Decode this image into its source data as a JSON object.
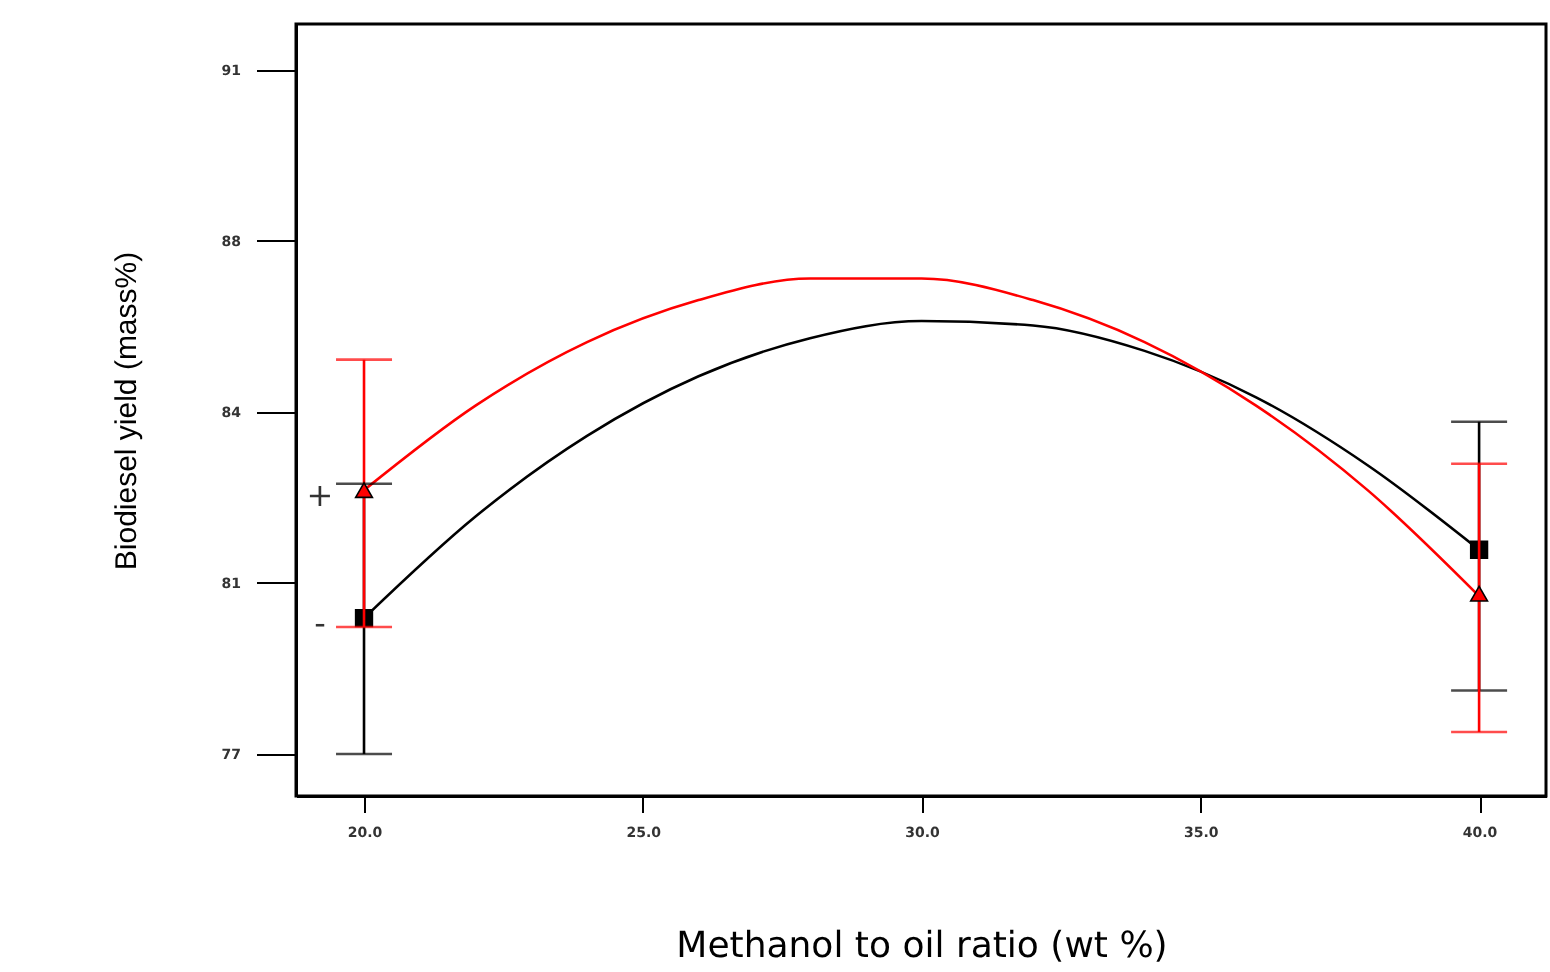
{
  "chart_data": {
    "type": "line",
    "xlabel": "Methanol to oil ratio (wt %)",
    "ylabel": "Biodiesel yield (mass%)",
    "xlim": [
      18.78,
      41.2
    ],
    "xticks": [
      {
        "value": 20,
        "label": "20.0"
      },
      {
        "value": 25,
        "label": "25.0"
      },
      {
        "value": 30,
        "label": "30.0"
      },
      {
        "value": 35,
        "label": "35.0"
      },
      {
        "value": 40,
        "label": "40.0"
      }
    ],
    "ylim": [
      76.14,
      91.94
    ],
    "yticks": [
      77,
      {
        "value": 80.5,
        "label": "81"
      },
      84,
      {
        "value": 87.5,
        "label": "88"
      },
      91
    ],
    "grid": false,
    "series": [
      {
        "color": "#000000",
        "x": [
          20,
          22,
          24,
          26,
          28,
          30,
          32,
          34,
          36,
          38,
          40
        ],
        "values": [
          79.78,
          81.86,
          83.51,
          84.73,
          85.51,
          85.86,
          85.77,
          85.25,
          84.3,
          82.91,
          81.18
        ]
      },
      {
        "color": "#ff0000",
        "x": [
          20,
          22,
          24,
          26,
          28,
          30,
          32,
          34,
          36,
          38,
          40
        ],
        "values": [
          82.4,
          84.13,
          85.43,
          86.29,
          86.73,
          86.73,
          86.29,
          85.43,
          84.13,
          82.4,
          80.23
        ]
      },
      {
        "type": "scatter",
        "color": "#000000",
        "marker": "square",
        "x": [
          20,
          40
        ],
        "values": [
          79.78,
          81.18
        ],
        "errors": [
          [
            77.0,
            82.53
          ],
          [
            78.3,
            83.8
          ]
        ]
      },
      {
        "type": "scatter",
        "color": "#ff0000",
        "marker": "triangle",
        "x": [
          20,
          40
        ],
        "values": [
          82.4,
          80.28
        ],
        "errors": [
          [
            79.6,
            85.07
          ],
          [
            77.45,
            82.94
          ]
        ]
      }
    ],
    "annotations": [
      {
        "text": "+",
        "x": 20,
        "y": 82.4
      },
      {
        "text": "-",
        "x": 20,
        "y": 79.78
      }
    ]
  }
}
